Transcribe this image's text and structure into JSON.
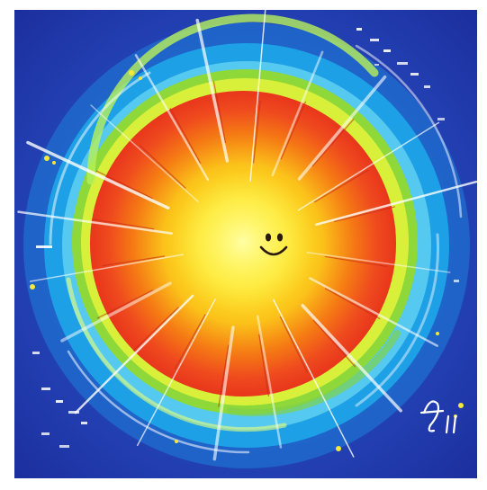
{
  "artwork": {
    "subject": "sun-painting",
    "face": "smiley",
    "signature_text": "",
    "colors": {
      "background_deep": "#1b2b9a",
      "background_mid": "#2a55c8",
      "ring_blue": "#1ea0e6",
      "ring_cyan": "#5fd0f0",
      "ring_green": "#8ed83a",
      "ring_lime": "#d8f03a",
      "sun_outer": "#ef3a1e",
      "sun_mid": "#f57a14",
      "sun_inner": "#fbc21a",
      "sun_core": "#fff23a",
      "face": "#2a1a10",
      "streak": "#ffffff"
    }
  }
}
